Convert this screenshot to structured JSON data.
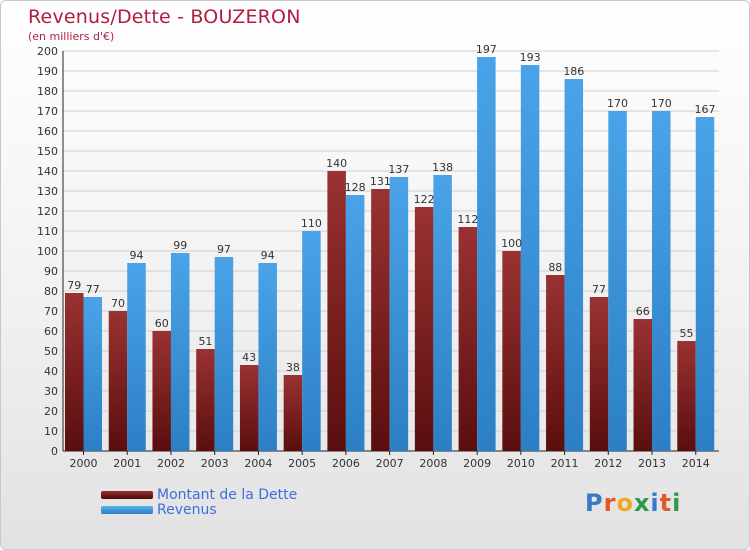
{
  "title": "Revenus/Dette - BOUZERON",
  "subtitle": "(en milliers d'€)",
  "logo_text": "Proxiti",
  "logo_colors": [
    "#3a78c8",
    "#e0592a",
    "#f2a623",
    "#2a9b4a",
    "#3a78c8",
    "#e0592a",
    "#2a9b4a"
  ],
  "colors": {
    "title": "#b01e3f",
    "dette": "#8a2a2a",
    "revenus": "#3f97dc",
    "legend_text": "#3f6de0"
  },
  "chart_data": {
    "type": "bar",
    "title": "Revenus/Dette - BOUZERON",
    "subtitle": "(en milliers d'€)",
    "xlabel": "",
    "ylabel": "",
    "ylim": [
      0,
      200
    ],
    "ytick_step": 10,
    "grid": true,
    "legend_position": "bottom-left",
    "categories": [
      "2000",
      "2001",
      "2002",
      "2003",
      "2004",
      "2005",
      "2006",
      "2007",
      "2008",
      "2009",
      "2010",
      "2011",
      "2012",
      "2013",
      "2014"
    ],
    "series": [
      {
        "name": "Montant de la Dette",
        "color": "#8a2a2a",
        "values": [
          79,
          70,
          60,
          51,
          43,
          38,
          140,
          131,
          122,
          112,
          100,
          88,
          77,
          66,
          55
        ]
      },
      {
        "name": "Revenus",
        "color": "#3f97dc",
        "values": [
          77,
          94,
          99,
          97,
          94,
          110,
          128,
          137,
          138,
          197,
          193,
          186,
          170,
          170,
          167
        ]
      }
    ]
  }
}
